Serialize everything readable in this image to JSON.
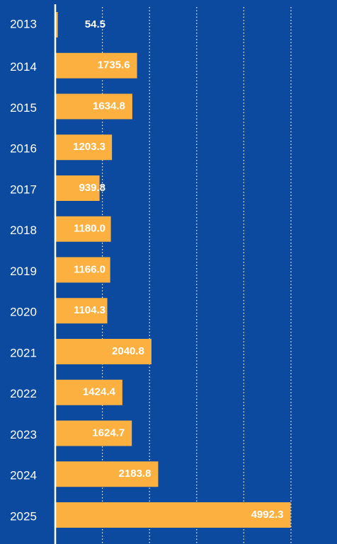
{
  "chart_data": {
    "type": "bar",
    "orientation": "horizontal",
    "categories": [
      "2013",
      "2014",
      "2015",
      "2016",
      "2017",
      "2018",
      "2019",
      "2020",
      "2021",
      "2022",
      "2023",
      "2024",
      "2025"
    ],
    "values": [
      54.5,
      1735.6,
      1634.8,
      1203.3,
      939.8,
      1180.0,
      1166.0,
      1104.3,
      2040.8,
      1424.4,
      1624.7,
      2183.8,
      4992.3
    ],
    "value_labels": [
      "54.5",
      "1735.6",
      "1634.8",
      "1203.3",
      "939.8",
      "1180.0",
      "1166.0",
      "1104.3",
      "2040.8",
      "1424.4",
      "1624.7",
      "2183.8",
      "4992.3"
    ],
    "color": "#fbb040",
    "xlim": [
      0,
      5000
    ],
    "xticks": [
      1000,
      2000,
      3000,
      4000,
      5000
    ],
    "grid": true
  }
}
